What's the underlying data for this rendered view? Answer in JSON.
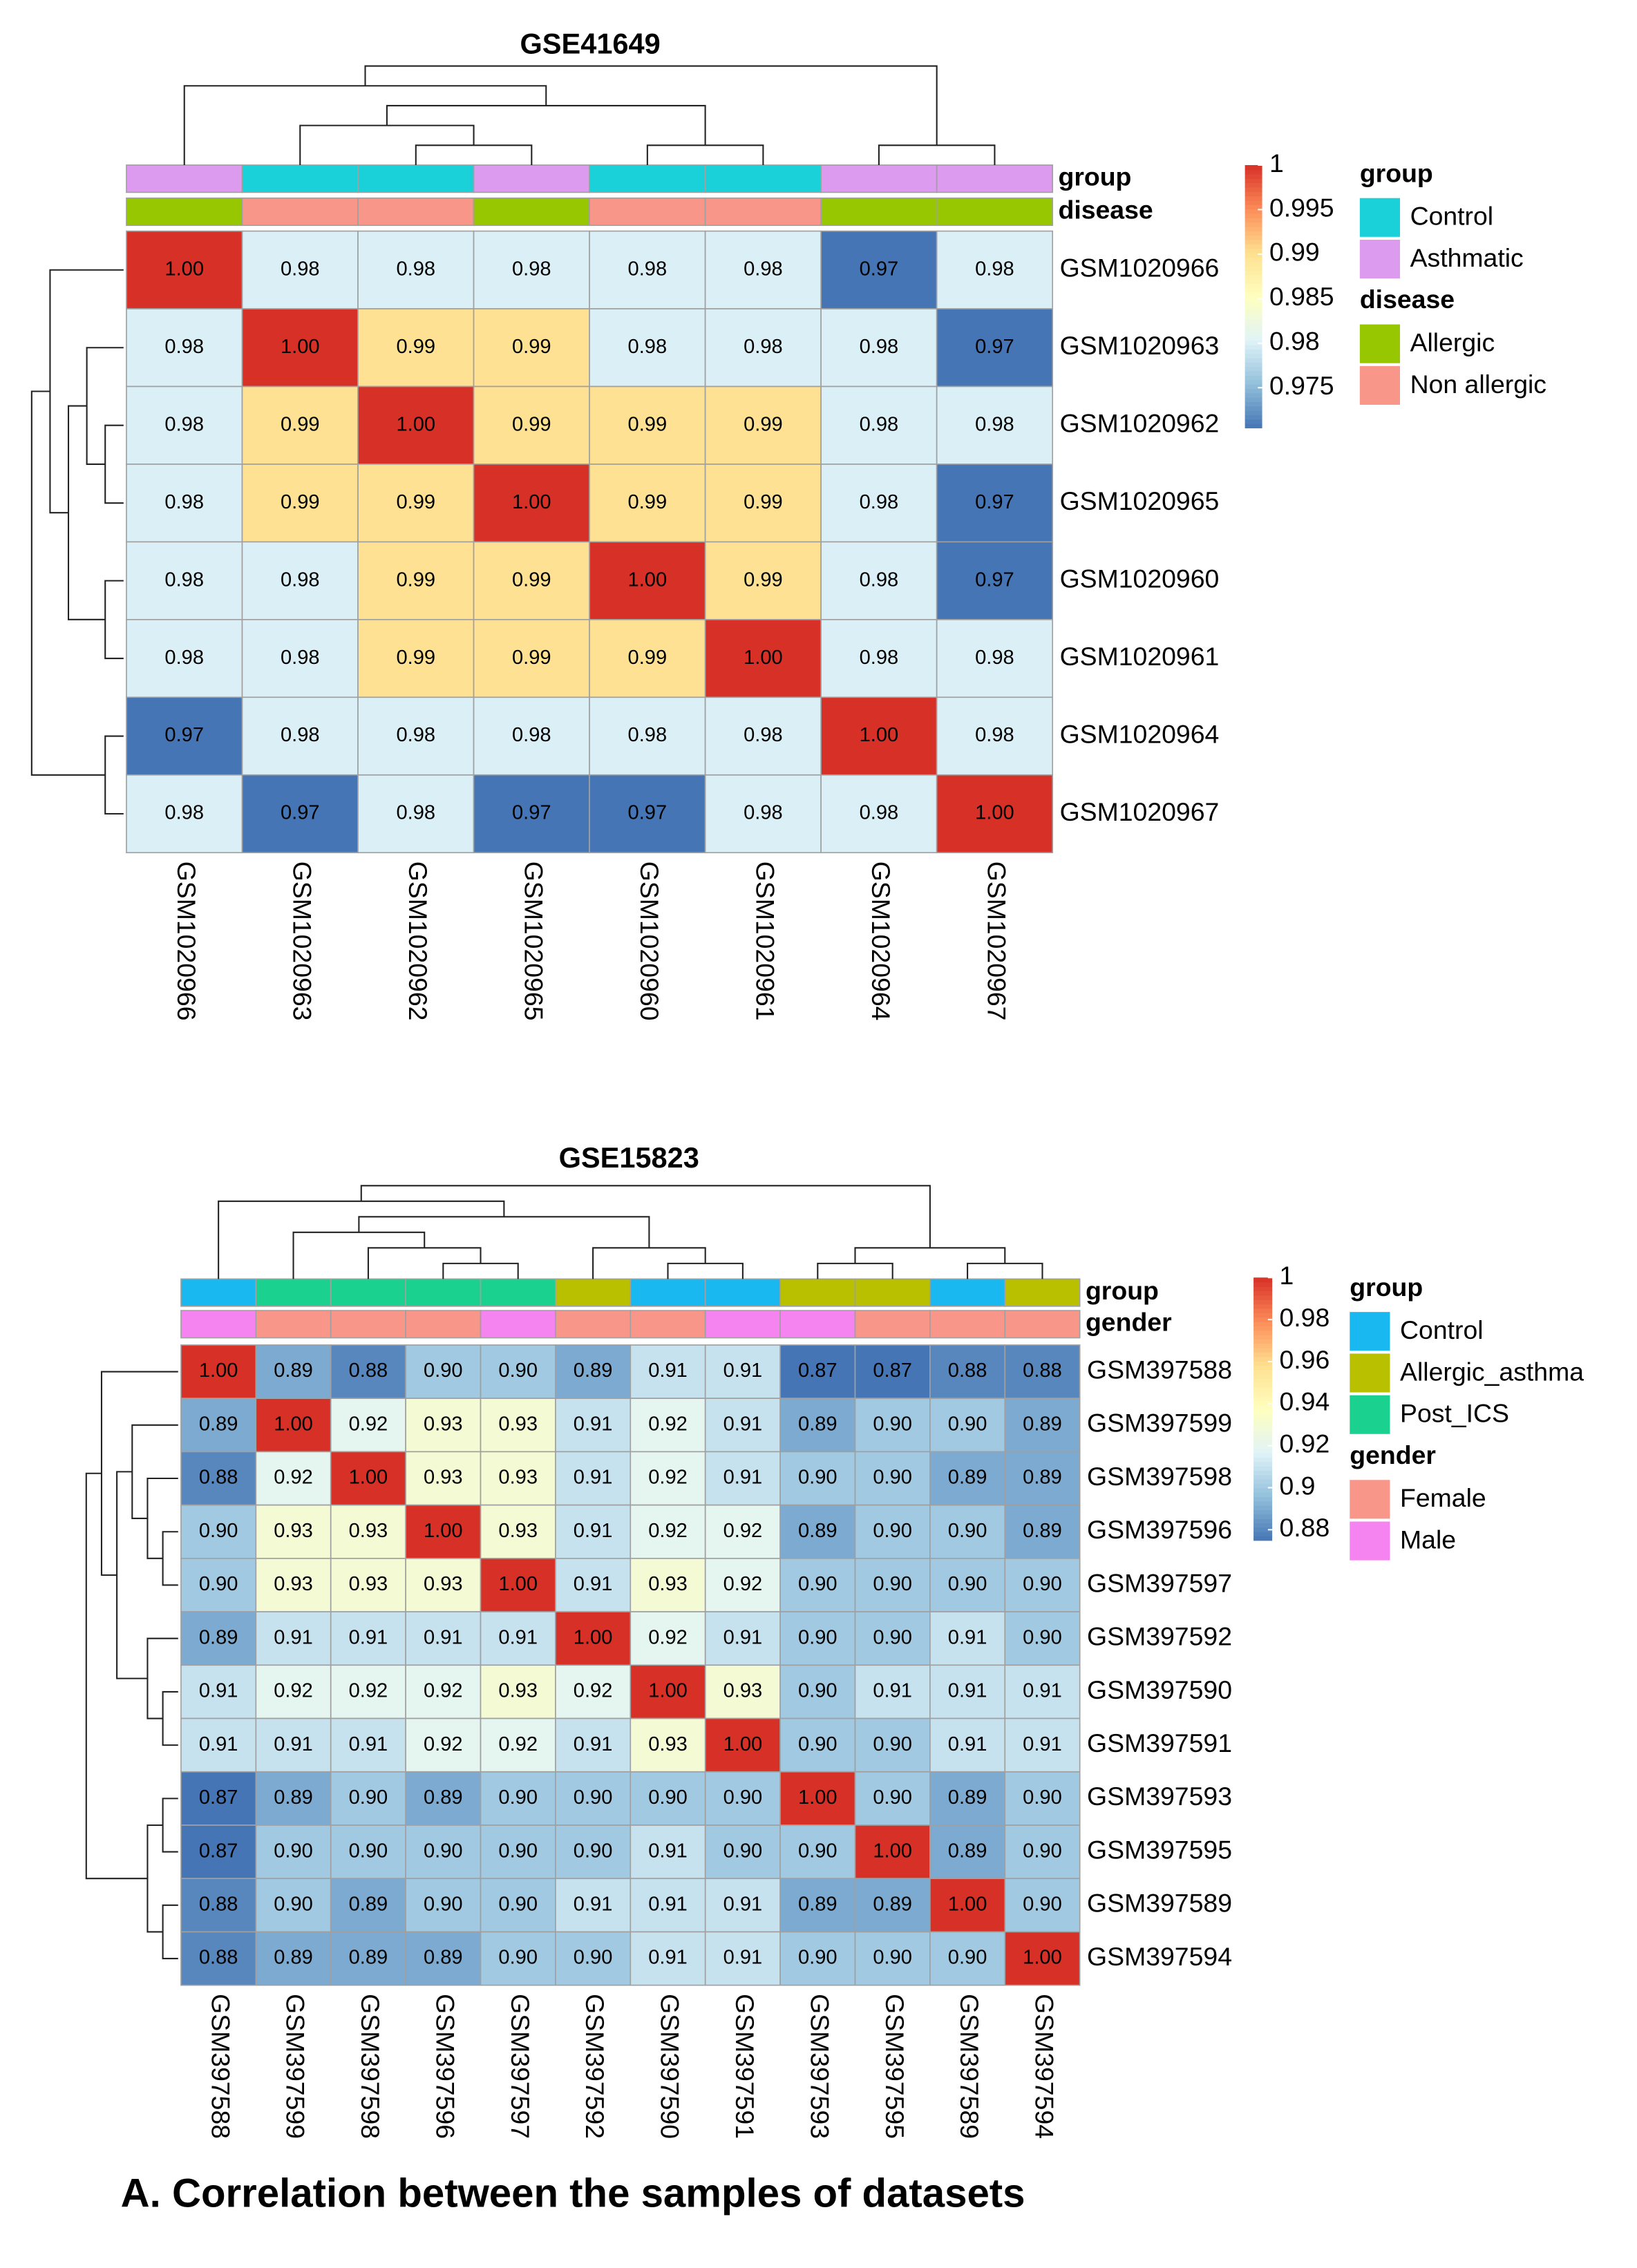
{
  "caption": "A. Correlation between the samples of datasets",
  "chart_data": [
    {
      "type": "heatmap",
      "title": "GSE41649",
      "rows": [
        "GSM1020966",
        "GSM1020963",
        "GSM1020962",
        "GSM1020965",
        "GSM1020960",
        "GSM1020961",
        "GSM1020964",
        "GSM1020967"
      ],
      "columns": [
        "GSM1020966",
        "GSM1020963",
        "GSM1020962",
        "GSM1020965",
        "GSM1020960",
        "GSM1020961",
        "GSM1020964",
        "GSM1020967"
      ],
      "values": [
        [
          1.0,
          0.98,
          0.98,
          0.98,
          0.98,
          0.98,
          0.97,
          0.98
        ],
        [
          0.98,
          1.0,
          0.99,
          0.99,
          0.98,
          0.98,
          0.98,
          0.97
        ],
        [
          0.98,
          0.99,
          1.0,
          0.99,
          0.99,
          0.99,
          0.98,
          0.98
        ],
        [
          0.98,
          0.99,
          0.99,
          1.0,
          0.99,
          0.99,
          0.98,
          0.97
        ],
        [
          0.98,
          0.98,
          0.99,
          0.99,
          1.0,
          0.99,
          0.98,
          0.97
        ],
        [
          0.98,
          0.98,
          0.99,
          0.99,
          0.99,
          1.0,
          0.98,
          0.98
        ],
        [
          0.97,
          0.98,
          0.98,
          0.98,
          0.98,
          0.98,
          1.0,
          0.98
        ],
        [
          0.98,
          0.97,
          0.98,
          0.97,
          0.97,
          0.98,
          0.98,
          1.0
        ]
      ],
      "value_labels": [
        [
          "1.00",
          "0.98",
          "0.98",
          "0.98",
          "0.98",
          "0.98",
          "0.97",
          "0.98"
        ],
        [
          "0.98",
          "1.00",
          "0.99",
          "0.99",
          "0.98",
          "0.98",
          "0.98",
          "0.97"
        ],
        [
          "0.98",
          "0.99",
          "1.00",
          "0.99",
          "0.99",
          "0.99",
          "0.98",
          "0.98"
        ],
        [
          "0.98",
          "0.99",
          "0.99",
          "1.00",
          "0.99",
          "0.99",
          "0.98",
          "0.97"
        ],
        [
          "0.98",
          "0.98",
          "0.99",
          "0.99",
          "1.00",
          "0.99",
          "0.98",
          "0.97"
        ],
        [
          "0.98",
          "0.98",
          "0.99",
          "0.99",
          "0.99",
          "1.00",
          "0.98",
          "0.98"
        ],
        [
          "0.97",
          "0.98",
          "0.98",
          "0.98",
          "0.98",
          "0.98",
          "1.00",
          "0.98"
        ],
        [
          "0.98",
          "0.97",
          "0.98",
          "0.97",
          "0.97",
          "0.98",
          "0.98",
          "1.00"
        ]
      ],
      "annotations": [
        {
          "name": "group",
          "levels": [
            "Control",
            "Asthmatic"
          ],
          "colors": [
            "#1ad1d9",
            "#dd9bef"
          ],
          "values": [
            "Asthmatic",
            "Control",
            "Control",
            "Asthmatic",
            "Control",
            "Control",
            "Asthmatic",
            "Asthmatic"
          ]
        },
        {
          "name": "disease",
          "levels": [
            "Allergic",
            "Non allergic"
          ],
          "colors": [
            "#97c700",
            "#f8968a"
          ],
          "values": [
            "Allergic",
            "Non allergic",
            "Non allergic",
            "Allergic",
            "Non allergic",
            "Non allergic",
            "Allergic",
            "Allergic"
          ]
        }
      ],
      "colorbar": {
        "lim": [
          0.9705,
          1
        ],
        "ticks": [
          1,
          0.995,
          0.99,
          0.985,
          0.98,
          0.975
        ],
        "colors": [
          "#4575b4",
          "#91bfdb",
          "#e0f3f8",
          "#ffffbf",
          "#fee090",
          "#fc8d59",
          "#d73027"
        ]
      }
    },
    {
      "type": "heatmap",
      "title": "GSE15823",
      "rows": [
        "GSM397588",
        "GSM397599",
        "GSM397598",
        "GSM397596",
        "GSM397597",
        "GSM397592",
        "GSM397590",
        "GSM397591",
        "GSM397593",
        "GSM397595",
        "GSM397589",
        "GSM397594"
      ],
      "columns": [
        "GSM397588",
        "GSM397599",
        "GSM397598",
        "GSM397596",
        "GSM397597",
        "GSM397592",
        "GSM397590",
        "GSM397591",
        "GSM397593",
        "GSM397595",
        "GSM397589",
        "GSM397594"
      ],
      "values": [
        [
          1.0,
          0.89,
          0.88,
          0.9,
          0.9,
          0.89,
          0.91,
          0.91,
          0.87,
          0.87,
          0.88,
          0.88
        ],
        [
          0.89,
          1.0,
          0.92,
          0.93,
          0.93,
          0.91,
          0.92,
          0.91,
          0.89,
          0.9,
          0.9,
          0.89
        ],
        [
          0.88,
          0.92,
          1.0,
          0.93,
          0.93,
          0.91,
          0.92,
          0.91,
          0.9,
          0.9,
          0.89,
          0.89
        ],
        [
          0.9,
          0.93,
          0.93,
          1.0,
          0.93,
          0.91,
          0.92,
          0.92,
          0.89,
          0.9,
          0.9,
          0.89
        ],
        [
          0.9,
          0.93,
          0.93,
          0.93,
          1.0,
          0.91,
          0.93,
          0.92,
          0.9,
          0.9,
          0.9,
          0.9
        ],
        [
          0.89,
          0.91,
          0.91,
          0.91,
          0.91,
          1.0,
          0.92,
          0.91,
          0.9,
          0.9,
          0.91,
          0.9
        ],
        [
          0.91,
          0.92,
          0.92,
          0.92,
          0.93,
          0.92,
          1.0,
          0.93,
          0.9,
          0.91,
          0.91,
          0.91
        ],
        [
          0.91,
          0.91,
          0.91,
          0.92,
          0.92,
          0.91,
          0.93,
          1.0,
          0.9,
          0.9,
          0.91,
          0.91
        ],
        [
          0.87,
          0.89,
          0.9,
          0.89,
          0.9,
          0.9,
          0.9,
          0.9,
          1.0,
          0.9,
          0.89,
          0.9
        ],
        [
          0.87,
          0.9,
          0.9,
          0.9,
          0.9,
          0.9,
          0.91,
          0.9,
          0.9,
          1.0,
          0.89,
          0.9
        ],
        [
          0.88,
          0.9,
          0.89,
          0.9,
          0.9,
          0.91,
          0.91,
          0.91,
          0.89,
          0.89,
          1.0,
          0.9
        ],
        [
          0.88,
          0.89,
          0.89,
          0.89,
          0.9,
          0.9,
          0.91,
          0.91,
          0.9,
          0.9,
          0.9,
          1.0
        ]
      ],
      "value_labels": [
        [
          "1.00",
          "0.89",
          "0.88",
          "0.90",
          "0.90",
          "0.89",
          "0.91",
          "0.91",
          "0.87",
          "0.87",
          "0.88",
          "0.88"
        ],
        [
          "0.89",
          "1.00",
          "0.92",
          "0.93",
          "0.93",
          "0.91",
          "0.92",
          "0.91",
          "0.89",
          "0.90",
          "0.90",
          "0.89"
        ],
        [
          "0.88",
          "0.92",
          "1.00",
          "0.93",
          "0.93",
          "0.91",
          "0.92",
          "0.91",
          "0.90",
          "0.90",
          "0.89",
          "0.89"
        ],
        [
          "0.90",
          "0.93",
          "0.93",
          "1.00",
          "0.93",
          "0.91",
          "0.92",
          "0.92",
          "0.89",
          "0.90",
          "0.90",
          "0.89"
        ],
        [
          "0.90",
          "0.93",
          "0.93",
          "0.93",
          "1.00",
          "0.91",
          "0.93",
          "0.92",
          "0.90",
          "0.90",
          "0.90",
          "0.90"
        ],
        [
          "0.89",
          "0.91",
          "0.91",
          "0.91",
          "0.91",
          "1.00",
          "0.92",
          "0.91",
          "0.90",
          "0.90",
          "0.91",
          "0.90"
        ],
        [
          "0.91",
          "0.92",
          "0.92",
          "0.92",
          "0.93",
          "0.92",
          "1.00",
          "0.93",
          "0.90",
          "0.91",
          "0.91",
          "0.91"
        ],
        [
          "0.91",
          "0.91",
          "0.91",
          "0.92",
          "0.92",
          "0.91",
          "0.93",
          "1.00",
          "0.90",
          "0.90",
          "0.91",
          "0.91"
        ],
        [
          "0.87",
          "0.89",
          "0.90",
          "0.89",
          "0.90",
          "0.90",
          "0.90",
          "0.90",
          "1.00",
          "0.90",
          "0.89",
          "0.90"
        ],
        [
          "0.87",
          "0.90",
          "0.90",
          "0.90",
          "0.90",
          "0.90",
          "0.91",
          "0.90",
          "0.90",
          "1.00",
          "0.89",
          "0.90"
        ],
        [
          "0.88",
          "0.90",
          "0.89",
          "0.90",
          "0.90",
          "0.91",
          "0.91",
          "0.91",
          "0.89",
          "0.89",
          "1.00",
          "0.90"
        ],
        [
          "0.88",
          "0.89",
          "0.89",
          "0.89",
          "0.90",
          "0.90",
          "0.91",
          "0.91",
          "0.90",
          "0.90",
          "0.90",
          "1.00"
        ]
      ],
      "annotations": [
        {
          "name": "group",
          "levels": [
            "Control",
            "Allergic_asthma",
            "Post_ICS"
          ],
          "colors": [
            "#1ab8f0",
            "#b8c000",
            "#1ad18f"
          ],
          "values": [
            "Control",
            "Post_ICS",
            "Post_ICS",
            "Post_ICS",
            "Post_ICS",
            "Allergic_asthma",
            "Control",
            "Control",
            "Allergic_asthma",
            "Allergic_asthma",
            "Control",
            "Allergic_asthma"
          ]
        },
        {
          "name": "gender",
          "levels": [
            "Female",
            "Male"
          ],
          "colors": [
            "#f8968a",
            "#f583f0"
          ],
          "values": [
            "Male",
            "Female",
            "Female",
            "Female",
            "Male",
            "Female",
            "Female",
            "Male",
            "Male",
            "Female",
            "Female",
            "Female"
          ]
        }
      ],
      "colorbar": {
        "lim": [
          0.875,
          1
        ],
        "ticks": [
          1,
          0.98,
          0.96,
          0.94,
          0.92,
          0.9,
          0.88
        ],
        "colors": [
          "#4575b4",
          "#91bfdb",
          "#e0f3f8",
          "#ffffbf",
          "#fee090",
          "#fc8d59",
          "#d73027"
        ]
      }
    }
  ]
}
